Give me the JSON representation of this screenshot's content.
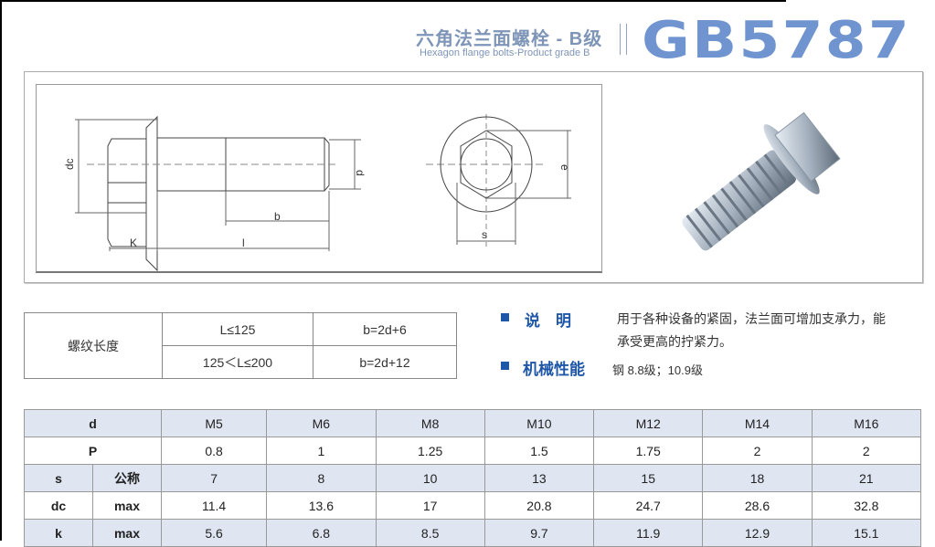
{
  "header": {
    "title_cn": "六角法兰面螺栓 - B级",
    "title_en": "Hexagon flange bolts-Product grade B",
    "standard": "GB5787",
    "brand_color": "#6f94cf"
  },
  "drawing": {
    "labels": {
      "dc": "dc",
      "d": "d",
      "b": "b",
      "k": "K",
      "l": "l",
      "e": "e",
      "s": "s"
    }
  },
  "thread_length": {
    "label": "螺纹长度",
    "rows": [
      {
        "condition": "L≤125",
        "value": "b=2d+6"
      },
      {
        "condition": "125＜L≤200",
        "value": "b=2d+12"
      }
    ]
  },
  "description": {
    "label": "说　明",
    "text_line1": "用于各种设备的紧固，法兰面可增加支承力，能",
    "text_line2": "承受更高的拧紧力。"
  },
  "mechanical": {
    "label": "机械性能",
    "text": "钢 8.8级；10.9级"
  },
  "spec_table": {
    "sizes": [
      "M5",
      "M6",
      "M8",
      "M10",
      "M12",
      "M14",
      "M16"
    ],
    "rows": [
      {
        "param": "d",
        "sub": "",
        "values": [
          "M5",
          "M6",
          "M8",
          "M10",
          "M12",
          "M14",
          "M16"
        ]
      },
      {
        "param": "P",
        "sub": "",
        "values": [
          "0.8",
          "1",
          "1.25",
          "1.5",
          "1.75",
          "2",
          "2"
        ]
      },
      {
        "param": "s",
        "sub": "公称",
        "values": [
          "7",
          "8",
          "10",
          "13",
          "15",
          "18",
          "21"
        ]
      },
      {
        "param": "dc",
        "sub": "max",
        "values": [
          "11.4",
          "13.6",
          "17",
          "20.8",
          "24.7",
          "28.6",
          "32.8"
        ]
      },
      {
        "param": "k",
        "sub": "max",
        "values": [
          "5.6",
          "6.8",
          "8.5",
          "9.7",
          "11.9",
          "12.9",
          "15.1"
        ]
      }
    ]
  }
}
